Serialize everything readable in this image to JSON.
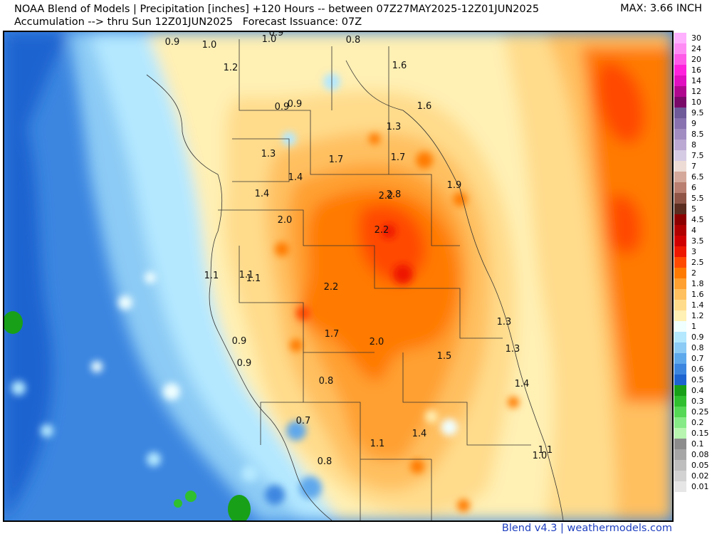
{
  "header": {
    "line1": "NOAA Blend of Models | Precipitation [inches] +120 Hours -- between 07Z27MAY2025-12Z01JUN2025",
    "line2": "Accumulation --> thru Sun 12Z01JUN2025   Forecast Issuance: 07Z",
    "max": "MAX: 3.66 INCH"
  },
  "credit": "Blend v4.3 | weathermodels.com",
  "legend": [
    {
      "label": "30",
      "color": "#ffb0ff"
    },
    {
      "label": "24",
      "color": "#ff8cf5"
    },
    {
      "label": "20",
      "color": "#ff5ae8"
    },
    {
      "label": "16",
      "color": "#ff22dd"
    },
    {
      "label": "14",
      "color": "#e00fc0"
    },
    {
      "label": "12",
      "color": "#b0078f"
    },
    {
      "label": "10",
      "color": "#7a0a6a"
    },
    {
      "label": "9.5",
      "color": "#6f5a9a"
    },
    {
      "label": "9",
      "color": "#8873b0"
    },
    {
      "label": "8.5",
      "color": "#a18dc2"
    },
    {
      "label": "8",
      "color": "#bba9d3"
    },
    {
      "label": "7.5",
      "color": "#d6cbe4"
    },
    {
      "label": "7",
      "color": "#eddcd5"
    },
    {
      "label": "6.5",
      "color": "#d4a99b"
    },
    {
      "label": "6",
      "color": "#b97f70"
    },
    {
      "label": "5.5",
      "color": "#8f5546"
    },
    {
      "label": "5",
      "color": "#5a2d20"
    },
    {
      "label": "4.5",
      "color": "#8c0000"
    },
    {
      "label": "4",
      "color": "#b00000"
    },
    {
      "label": "3.5",
      "color": "#d00000"
    },
    {
      "label": "3",
      "color": "#ee1800"
    },
    {
      "label": "2.5",
      "color": "#ff4a00"
    },
    {
      "label": "2",
      "color": "#ff7a00"
    },
    {
      "label": "1.8",
      "color": "#ffa030"
    },
    {
      "label": "1.6",
      "color": "#ffc060"
    },
    {
      "label": "1.4",
      "color": "#ffdc8c"
    },
    {
      "label": "1.2",
      "color": "#fff0b4"
    },
    {
      "label": "1",
      "color": "#f0ffff"
    },
    {
      "label": "0.9",
      "color": "#b4e8ff"
    },
    {
      "label": "0.8",
      "color": "#8ccbf5"
    },
    {
      "label": "0.7",
      "color": "#5ea8ec"
    },
    {
      "label": "0.6",
      "color": "#3c86e0"
    },
    {
      "label": "0.5",
      "color": "#1e64d0"
    },
    {
      "label": "0.4",
      "color": "#18a018"
    },
    {
      "label": "0.3",
      "color": "#2fbf2f"
    },
    {
      "label": "0.25",
      "color": "#55d855"
    },
    {
      "label": "0.2",
      "color": "#86ea86"
    },
    {
      "label": "0.15",
      "color": "#b7f5b0"
    },
    {
      "label": "0.1",
      "color": "#8c8c8c"
    },
    {
      "label": "0.08",
      "color": "#a6a6a6"
    },
    {
      "label": "0.05",
      "color": "#bebebe"
    },
    {
      "label": "0.02",
      "color": "#d2d2d2"
    },
    {
      "label": "0.01",
      "color": "#e6e6e6"
    }
  ],
  "map_labels": [
    {
      "text": "0.9"
    },
    {
      "text": "1.0"
    },
    {
      "text": "0.9"
    },
    {
      "text": "1.0"
    },
    {
      "text": "0.8"
    },
    {
      "text": "1.2"
    },
    {
      "text": "1.6"
    },
    {
      "text": "0.9"
    },
    {
      "text": "0.9"
    },
    {
      "text": "1.6"
    },
    {
      "text": "1.3"
    },
    {
      "text": "1.3"
    },
    {
      "text": "1.7"
    },
    {
      "text": "1.7"
    },
    {
      "text": "1.4"
    },
    {
      "text": "1.9"
    },
    {
      "text": "1.4"
    },
    {
      "text": "2.2"
    },
    {
      "text": "2.8"
    },
    {
      "text": "2.0"
    },
    {
      "text": "2.2"
    },
    {
      "text": "1.1"
    },
    {
      "text": "1.1"
    },
    {
      "text": "1.1"
    },
    {
      "text": "2.2"
    },
    {
      "text": "1.3"
    },
    {
      "text": "1.7"
    },
    {
      "text": "2.0"
    },
    {
      "text": "0.9"
    },
    {
      "text": "1.3"
    },
    {
      "text": "1.5"
    },
    {
      "text": "0.9"
    },
    {
      "text": "0.8"
    },
    {
      "text": "1.4"
    },
    {
      "text": "0.7"
    },
    {
      "text": "1.4"
    },
    {
      "text": "1.1"
    },
    {
      "text": "1.1"
    },
    {
      "text": "1.0"
    },
    {
      "text": "0.8"
    }
  ]
}
